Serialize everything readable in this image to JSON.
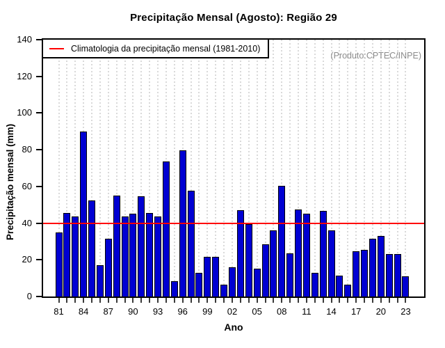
{
  "chart_data": {
    "type": "bar",
    "title": "Precipitação Mensal (Agosto): Região 29",
    "xlabel": "Ano",
    "ylabel": "Precipitação mensal (mm)",
    "ylim": [
      0,
      140
    ],
    "ytick_labels": [
      "0",
      "20",
      "40",
      "60",
      "80",
      "100",
      "120",
      "140"
    ],
    "grid": {
      "vertical": "dashed",
      "horizontal": "none"
    },
    "legend": {
      "label": "Climatologia da precipitação mensal (1981-2010)",
      "position": "top-left"
    },
    "annotation": "(Produto:CPTEC/INPE)",
    "reference_line": {
      "name": "climatologia-1981-2010",
      "value": 40,
      "color": "#ff0000"
    },
    "colors": {
      "bar": "#0000d2",
      "bar_border": "#000000",
      "grid": "#d9d9d9",
      "annotation_text": "#8c8c8c",
      "reference": "#ff0000"
    },
    "years": [
      1981,
      1982,
      1983,
      1984,
      1985,
      1986,
      1987,
      1988,
      1989,
      1990,
      1991,
      1992,
      1993,
      1994,
      1995,
      1996,
      1997,
      1998,
      1999,
      2000,
      2001,
      2002,
      2003,
      2004,
      2005,
      2006,
      2007,
      2008,
      2009,
      2010,
      2011,
      2012,
      2013,
      2014,
      2015,
      2016,
      2017,
      2018,
      2019,
      2020,
      2021,
      2022,
      2023
    ],
    "values": [
      35,
      45.5,
      43.5,
      90,
      52.5,
      17,
      31.5,
      55,
      43.5,
      45,
      54.5,
      45.5,
      43.5,
      73.5,
      8.5,
      79.5,
      57.5,
      13,
      21.5,
      21.5,
      6.5,
      16,
      47,
      39.5,
      15,
      28.5,
      36,
      60.5,
      23.5,
      47.5,
      45,
      13,
      46.5,
      36,
      11.5,
      6.5,
      24.5,
      25.5,
      31.5,
      33,
      23,
      23,
      11
    ],
    "xtick_labels": [
      {
        "year": 1981,
        "label": "81"
      },
      {
        "year": 1984,
        "label": "84"
      },
      {
        "year": 1987,
        "label": "87"
      },
      {
        "year": 1990,
        "label": "90"
      },
      {
        "year": 1993,
        "label": "93"
      },
      {
        "year": 1996,
        "label": "96"
      },
      {
        "year": 1999,
        "label": "99"
      },
      {
        "year": 2002,
        "label": "02"
      },
      {
        "year": 2005,
        "label": "05"
      },
      {
        "year": 2008,
        "label": "08"
      },
      {
        "year": 2011,
        "label": "11"
      },
      {
        "year": 2014,
        "label": "14"
      },
      {
        "year": 2017,
        "label": "17"
      },
      {
        "year": 2020,
        "label": "20"
      },
      {
        "year": 2023,
        "label": "23"
      }
    ]
  }
}
